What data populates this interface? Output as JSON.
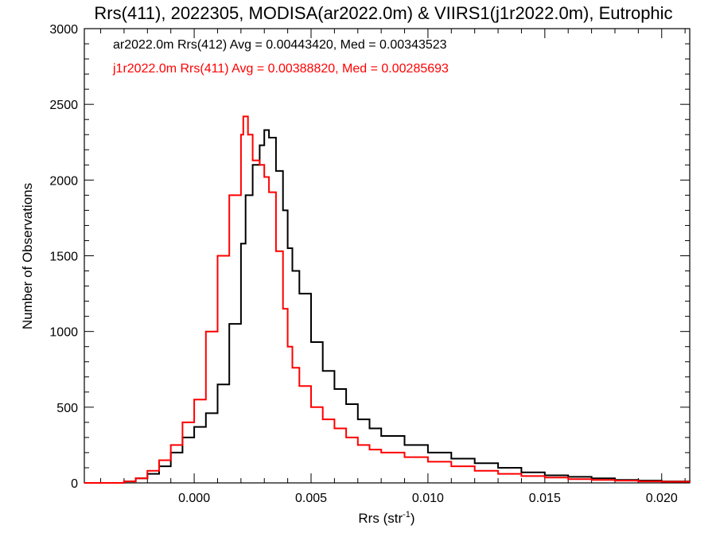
{
  "chart_data": {
    "type": "line",
    "title": "Rrs(411), 2022305, MODISA(ar2022.0m) & VIIRS1(j1r2022.0m), Eutrophic",
    "xlabel": "Rrs (str",
    "xlabel_sup": "-1",
    "xlabel_close": ")",
    "ylabel": "Number of Observations",
    "xlim": [
      -0.0047,
      0.0212
    ],
    "ylim": [
      0,
      3000
    ],
    "x_ticks": [
      0.0,
      0.005,
      0.01,
      0.015,
      0.02
    ],
    "x_tick_labels": [
      "0.000",
      "0.005",
      "0.010",
      "0.015",
      "0.020"
    ],
    "y_ticks": [
      0,
      500,
      1000,
      1500,
      2000,
      2500,
      3000
    ],
    "y_tick_labels": [
      "0",
      "500",
      "1000",
      "1500",
      "2000",
      "2500",
      "3000"
    ],
    "grid": false,
    "legend_position": "top-left",
    "series": [
      {
        "name": "ar2022.0m Rrs(412) Avg = 0.00443420, Med = 0.00343523",
        "color": "#000000",
        "x": [
          -0.0047,
          -0.0035,
          -0.003,
          -0.0025,
          -0.002,
          -0.0015,
          -0.001,
          -0.0005,
          0.0,
          0.0005,
          0.001,
          0.0015,
          0.002,
          0.0022,
          0.0025,
          0.0028,
          0.003,
          0.0032,
          0.0035,
          0.0038,
          0.004,
          0.0042,
          0.0045,
          0.005,
          0.0055,
          0.006,
          0.0065,
          0.007,
          0.0075,
          0.008,
          0.009,
          0.01,
          0.011,
          0.012,
          0.013,
          0.014,
          0.015,
          0.016,
          0.017,
          0.018,
          0.019,
          0.02,
          0.0212
        ],
        "y": [
          0,
          0,
          10,
          30,
          60,
          110,
          200,
          300,
          370,
          460,
          650,
          1050,
          1580,
          1900,
          2100,
          2230,
          2330,
          2280,
          2060,
          1800,
          1550,
          1400,
          1250,
          930,
          740,
          620,
          520,
          420,
          360,
          310,
          250,
          200,
          160,
          130,
          100,
          70,
          50,
          40,
          30,
          20,
          15,
          10,
          8
        ]
      },
      {
        "name": "j1r2022.0m Rrs(411) Avg = 0.00388820, Med = 0.00285693",
        "color": "#ff0000",
        "x": [
          -0.0047,
          -0.0035,
          -0.003,
          -0.0025,
          -0.002,
          -0.0015,
          -0.001,
          -0.0005,
          0.0,
          0.0005,
          0.001,
          0.0015,
          0.002,
          0.0021,
          0.0023,
          0.0025,
          0.0028,
          0.003,
          0.0032,
          0.0035,
          0.0038,
          0.004,
          0.0042,
          0.0045,
          0.005,
          0.0055,
          0.006,
          0.0065,
          0.007,
          0.0075,
          0.008,
          0.009,
          0.01,
          0.011,
          0.012,
          0.013,
          0.014,
          0.015,
          0.016,
          0.017,
          0.018,
          0.019,
          0.02,
          0.0212
        ],
        "y": [
          0,
          0,
          10,
          30,
          80,
          150,
          250,
          400,
          550,
          1000,
          1500,
          1900,
          2300,
          2420,
          2300,
          2130,
          2100,
          2020,
          1920,
          1530,
          1150,
          900,
          760,
          640,
          500,
          420,
          360,
          300,
          250,
          220,
          200,
          170,
          140,
          110,
          80,
          60,
          45,
          35,
          25,
          20,
          15,
          10,
          8,
          6
        ]
      }
    ]
  }
}
